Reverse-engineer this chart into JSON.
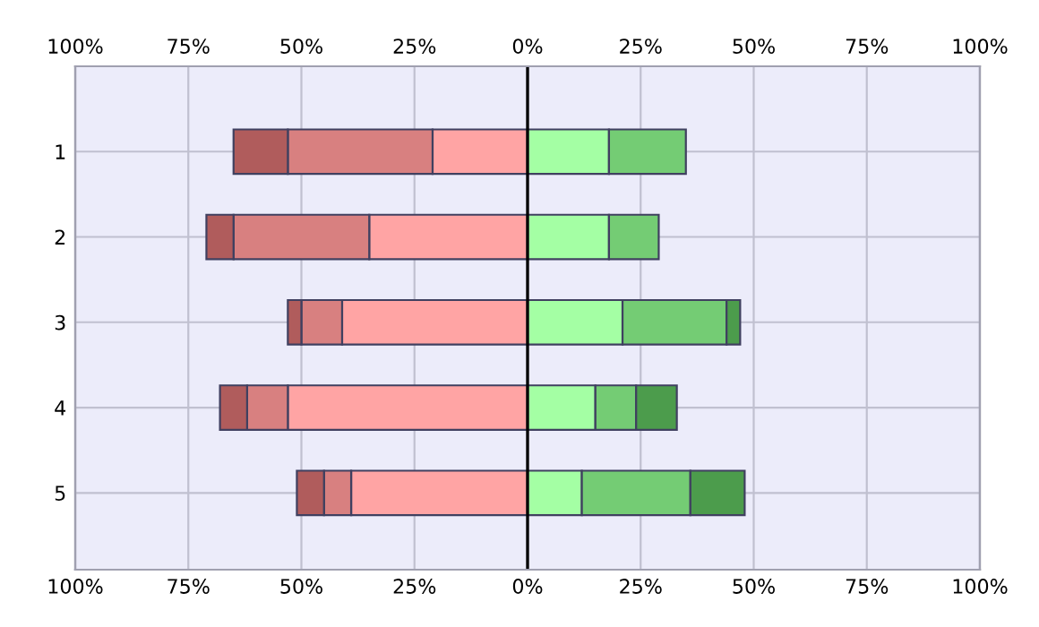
{
  "chart_data": {
    "type": "bar",
    "orientation": "horizontal",
    "stacked": true,
    "categories": [
      "1",
      "2",
      "3",
      "4",
      "5"
    ],
    "series": [
      {
        "color": "#ffa4a4",
        "values": [
          -21,
          -35,
          -41,
          -53,
          -39
        ]
      },
      {
        "color": "#d88080",
        "values": [
          -32,
          -30,
          -9,
          -9,
          -6
        ]
      },
      {
        "color": "#b05c5c",
        "values": [
          -12,
          -6,
          -3,
          -6,
          -6
        ]
      },
      {
        "color": "#a4ffa4",
        "values": [
          18,
          18,
          21,
          15,
          12
        ]
      },
      {
        "color": "#74cc74",
        "values": [
          17,
          11,
          23,
          9,
          24
        ]
      },
      {
        "color": "#4c9c4c",
        "values": [
          null,
          null,
          3,
          9,
          12
        ]
      }
    ],
    "xlim": [
      -100,
      100
    ],
    "xticks": [
      {
        "value": -100,
        "label": "100%"
      },
      {
        "value": -75,
        "label": "75%"
      },
      {
        "value": -50,
        "label": "50%"
      },
      {
        "value": -25,
        "label": "25%"
      },
      {
        "value": 0,
        "label": "0%"
      },
      {
        "value": 25,
        "label": "25%"
      },
      {
        "value": 50,
        "label": "50%"
      },
      {
        "value": 75,
        "label": "75%"
      },
      {
        "value": 100,
        "label": "100%"
      }
    ],
    "x2lim": [
      -100,
      100
    ],
    "x2ticks": [
      {
        "value": -100,
        "label": "100%"
      },
      {
        "value": -75,
        "label": "75%"
      },
      {
        "value": -50,
        "label": "50%"
      },
      {
        "value": -25,
        "label": "25%"
      },
      {
        "value": 0,
        "label": "0%"
      },
      {
        "value": 25,
        "label": "25%"
      },
      {
        "value": 50,
        "label": "50%"
      },
      {
        "value": 75,
        "label": "75%"
      },
      {
        "value": 100,
        "label": "100%"
      }
    ],
    "ref_lines": [
      {
        "axis": "x",
        "value": 0,
        "color": "#000000"
      }
    ],
    "grid": true
  }
}
